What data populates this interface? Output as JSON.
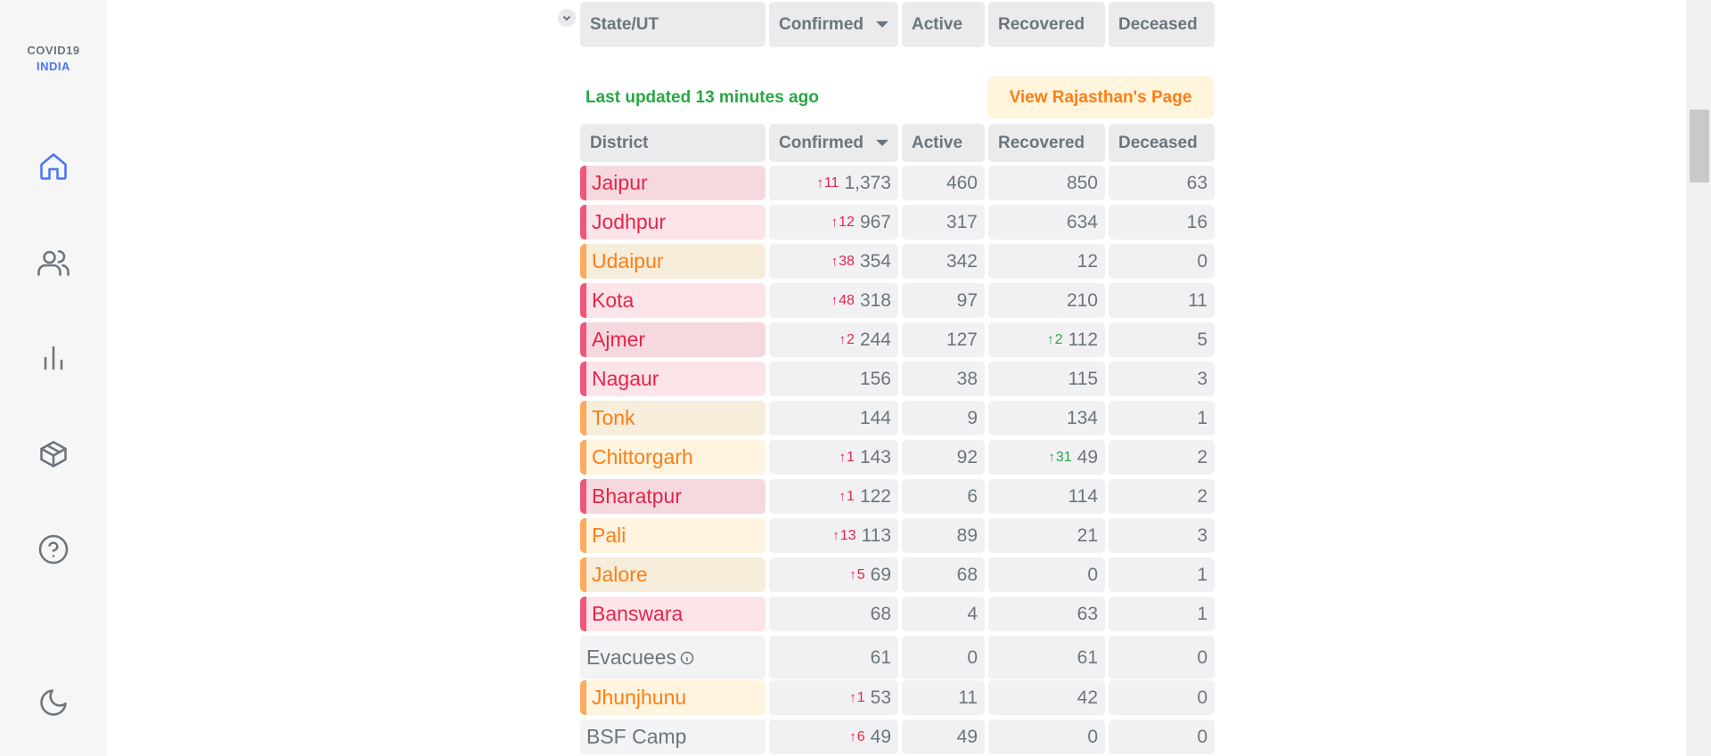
{
  "app": {
    "logo_line1": "COVID19",
    "logo_line2": "INDIA"
  },
  "nav": [
    {
      "icon": "home-icon",
      "active": true
    },
    {
      "icon": "users-icon",
      "active": false
    },
    {
      "icon": "bar-chart-icon",
      "active": false
    },
    {
      "icon": "package-icon",
      "active": false
    },
    {
      "icon": "help-icon",
      "active": false
    },
    {
      "icon": "moon-icon",
      "active": false
    }
  ],
  "state_header": {
    "state": "State/UT",
    "confirmed": "Confirmed",
    "active": "Active",
    "recovered": "Recovered",
    "deceased": "Deceased"
  },
  "district_section": {
    "last_updated": "Last updated 13 minutes ago",
    "view_state_button": "View Rajasthan's Page",
    "header": {
      "district": "District",
      "confirmed": "Confirmed",
      "active": "Active",
      "recovered": "Recovered",
      "deceased": "Deceased"
    },
    "rows": [
      {
        "name": "Jaipur",
        "color": "red",
        "shade": "dark",
        "d_conf": "11",
        "confirmed": "1,373",
        "active": "460",
        "d_rec": "",
        "recovered": "850",
        "deceased": "63"
      },
      {
        "name": "Jodhpur",
        "color": "red",
        "shade": "",
        "d_conf": "12",
        "confirmed": "967",
        "active": "317",
        "d_rec": "",
        "recovered": "634",
        "deceased": "16"
      },
      {
        "name": "Udaipur",
        "color": "orange",
        "shade": "dark",
        "d_conf": "38",
        "confirmed": "354",
        "active": "342",
        "d_rec": "",
        "recovered": "12",
        "deceased": "0"
      },
      {
        "name": "Kota",
        "color": "red",
        "shade": "",
        "d_conf": "48",
        "confirmed": "318",
        "active": "97",
        "d_rec": "",
        "recovered": "210",
        "deceased": "11"
      },
      {
        "name": "Ajmer",
        "color": "red",
        "shade": "dark",
        "d_conf": "2",
        "confirmed": "244",
        "active": "127",
        "d_rec": "2",
        "recovered": "112",
        "deceased": "5"
      },
      {
        "name": "Nagaur",
        "color": "red",
        "shade": "",
        "d_conf": "",
        "confirmed": "156",
        "active": "38",
        "d_rec": "",
        "recovered": "115",
        "deceased": "3"
      },
      {
        "name": "Tonk",
        "color": "orange",
        "shade": "dark",
        "d_conf": "",
        "confirmed": "144",
        "active": "9",
        "d_rec": "",
        "recovered": "134",
        "deceased": "1"
      },
      {
        "name": "Chittorgarh",
        "color": "orange",
        "shade": "",
        "d_conf": "1",
        "confirmed": "143",
        "active": "92",
        "d_rec": "31",
        "recovered": "49",
        "deceased": "2"
      },
      {
        "name": "Bharatpur",
        "color": "red",
        "shade": "dark",
        "d_conf": "1",
        "confirmed": "122",
        "active": "6",
        "d_rec": "",
        "recovered": "114",
        "deceased": "2"
      },
      {
        "name": "Pali",
        "color": "orange",
        "shade": "",
        "d_conf": "13",
        "confirmed": "113",
        "active": "89",
        "d_rec": "",
        "recovered": "21",
        "deceased": "3"
      },
      {
        "name": "Jalore",
        "color": "orange",
        "shade": "dark",
        "d_conf": "5",
        "confirmed": "69",
        "active": "68",
        "d_rec": "",
        "recovered": "0",
        "deceased": "1"
      },
      {
        "name": "Banswara",
        "color": "red",
        "shade": "",
        "d_conf": "",
        "confirmed": "68",
        "active": "4",
        "d_rec": "",
        "recovered": "63",
        "deceased": "1"
      },
      {
        "name": "Evacuees",
        "color": "plain",
        "shade": "",
        "info": true,
        "d_conf": "",
        "confirmed": "61",
        "active": "0",
        "d_rec": "",
        "recovered": "61",
        "deceased": "0"
      },
      {
        "name": "Jhunjhunu",
        "color": "orange",
        "shade": "",
        "d_conf": "1",
        "confirmed": "53",
        "active": "11",
        "d_rec": "",
        "recovered": "42",
        "deceased": "0"
      },
      {
        "name": "BSF Camp",
        "color": "plain",
        "shade": "",
        "d_conf": "6",
        "confirmed": "49",
        "active": "49",
        "d_rec": "",
        "recovered": "0",
        "deceased": "0"
      }
    ]
  }
}
